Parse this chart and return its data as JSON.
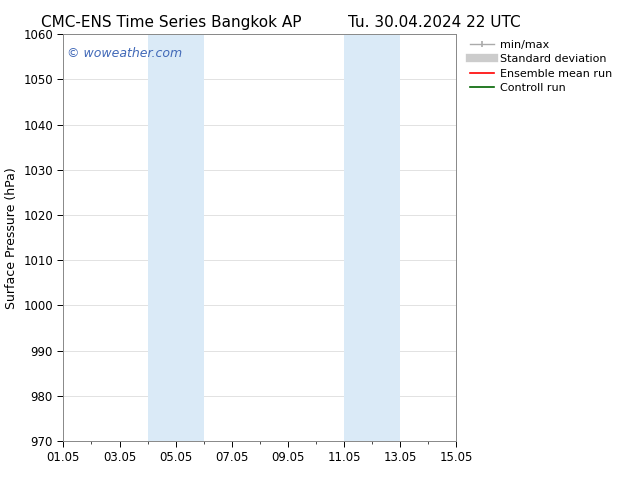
{
  "title_left": "CMC-ENS Time Series Bangkok AP",
  "title_right": "Tu. 30.04.2024 22 UTC",
  "ylabel": "Surface Pressure (hPa)",
  "ylim": [
    970,
    1060
  ],
  "yticks": [
    970,
    980,
    990,
    1000,
    1010,
    1020,
    1030,
    1040,
    1050,
    1060
  ],
  "xlim": [
    0,
    14
  ],
  "xtick_labels": [
    "01.05",
    "03.05",
    "05.05",
    "07.05",
    "09.05",
    "11.05",
    "13.05",
    "15.05"
  ],
  "xtick_positions": [
    0,
    2,
    4,
    6,
    8,
    10,
    12,
    14
  ],
  "shaded_regions": [
    {
      "x_start": 3.0,
      "x_end": 5.0
    },
    {
      "x_start": 10.0,
      "x_end": 12.0
    }
  ],
  "shaded_color": "#daeaf7",
  "watermark_text": "© woweather.com",
  "watermark_color": "#4169b8",
  "background_color": "#ffffff",
  "grid_color": "#dddddd",
  "legend_items": [
    {
      "label": "min/max",
      "color": "#aaaaaa",
      "lw": 1.0
    },
    {
      "label": "Standard deviation",
      "color": "#cccccc",
      "lw": 6
    },
    {
      "label": "Ensemble mean run",
      "color": "#ff0000",
      "lw": 1.2
    },
    {
      "label": "Controll run",
      "color": "#006400",
      "lw": 1.2
    }
  ],
  "title_fontsize": 11,
  "tick_fontsize": 8.5,
  "ylabel_fontsize": 9,
  "watermark_fontsize": 9,
  "legend_fontsize": 8
}
